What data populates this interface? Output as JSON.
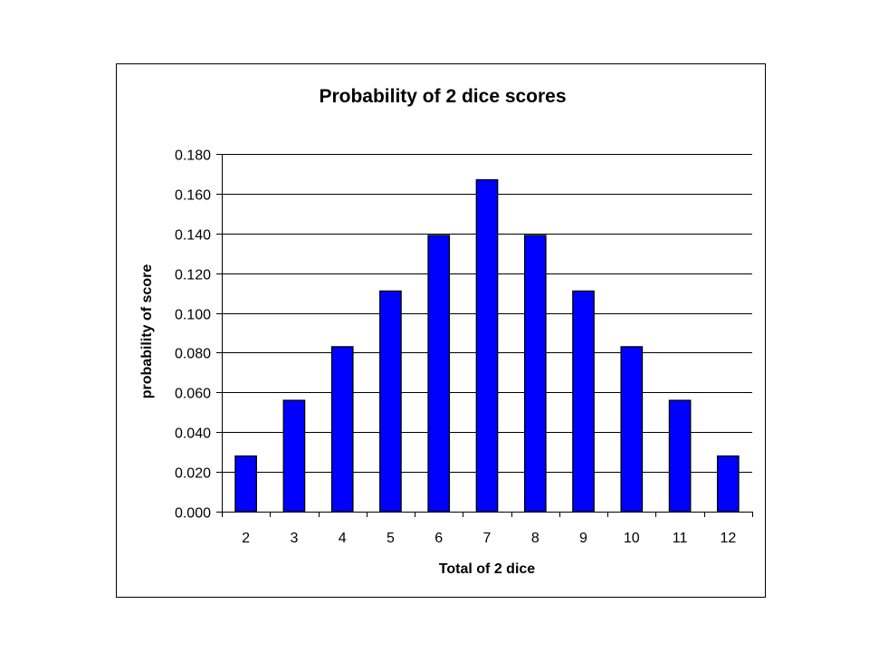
{
  "chart_data": {
    "type": "bar",
    "title": "Probability of 2 dice scores",
    "xlabel": "Total of 2 dice",
    "ylabel": "probability of score",
    "categories": [
      "2",
      "3",
      "4",
      "5",
      "6",
      "7",
      "8",
      "9",
      "10",
      "11",
      "12"
    ],
    "values": [
      0.028,
      0.056,
      0.083,
      0.111,
      0.139,
      0.167,
      0.139,
      0.111,
      0.083,
      0.056,
      0.028
    ],
    "ylim": [
      0,
      0.18
    ],
    "ytick_step": 0.02,
    "ytick_decimals": 3,
    "grid": true,
    "legend": "none",
    "bar_color": "#0000FF"
  }
}
